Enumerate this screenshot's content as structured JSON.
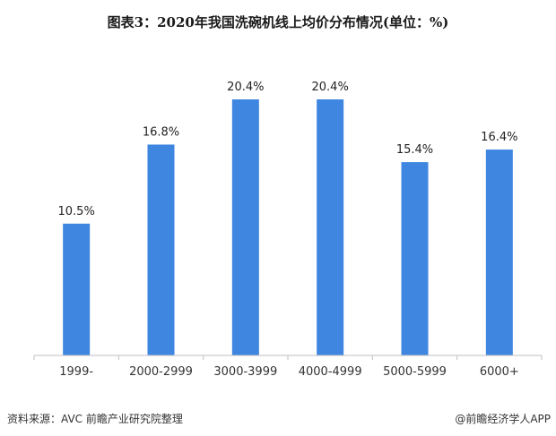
{
  "title": "图表3：2020年我国洗碗机线上均价分布情况(单位：%)",
  "source": "资料来源：AVC 前瞻产业研究院整理",
  "brand": "@前瞻经济学人APP",
  "colors": {
    "bar": "#3f86e0",
    "axis": "#bfbfbf",
    "text": "#333333"
  },
  "chart_data": {
    "type": "bar",
    "title": "图表3：2020年我国洗碗机线上均价分布情况(单位：%)",
    "categories": [
      "1999-",
      "2000-2999",
      "3000-3999",
      "4000-4999",
      "5000-5999",
      "6000+"
    ],
    "values": [
      10.5,
      16.8,
      20.4,
      20.4,
      15.4,
      16.4
    ],
    "data_labels": [
      "10.5%",
      "16.8%",
      "20.4%",
      "20.4%",
      "15.4%",
      "16.4%"
    ],
    "xlabel": "",
    "ylabel": "",
    "ylim": [
      0,
      20.4
    ],
    "grid": false,
    "legend": "none"
  }
}
